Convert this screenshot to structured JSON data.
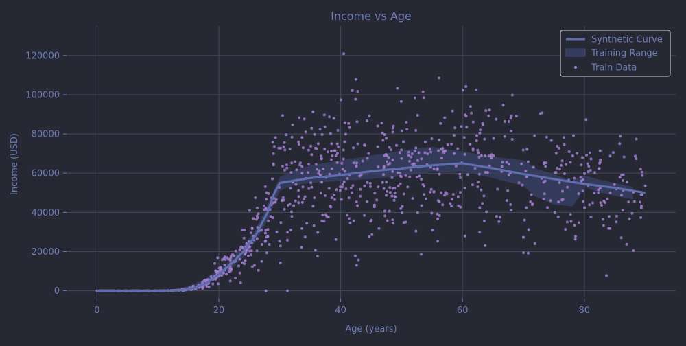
{
  "chart_data": {
    "type": "scatter",
    "title": "Income vs Age",
    "xlabel": "Age (years)",
    "ylabel": "Income (USD)",
    "xlim": [
      -5,
      95
    ],
    "ylim": [
      -4000,
      135000
    ],
    "xticks": [
      0,
      20,
      40,
      60,
      80
    ],
    "yticks": [
      0,
      20000,
      40000,
      60000,
      80000,
      100000,
      120000
    ],
    "grid": true,
    "legend_position": "top-right",
    "colors": {
      "background": "#262834",
      "grid": "#454858",
      "text": "#6e7bb4",
      "curve": "#5f6fae",
      "band": "#3a4066",
      "points": "#a27ed0"
    },
    "series": [
      {
        "name": "Synthetic Curve",
        "kind": "line",
        "x": [
          0,
          5,
          10,
          12,
          14,
          16,
          18,
          20,
          22,
          24,
          26,
          28,
          29,
          30,
          35,
          40,
          45,
          50,
          55,
          60,
          65,
          70,
          75,
          80,
          85,
          90
        ],
        "y": [
          0,
          0,
          0,
          100,
          400,
          1500,
          4000,
          8500,
          13500,
          20000,
          28000,
          40000,
          49000,
          55000,
          57500,
          59000,
          61000,
          62500,
          64000,
          65000,
          62500,
          59500,
          57000,
          54500,
          52500,
          50000
        ]
      },
      {
        "name": "Training Range",
        "kind": "band",
        "x": [
          10,
          12,
          14,
          16,
          18,
          20,
          22,
          24,
          26,
          28,
          30,
          32,
          35,
          40,
          45,
          50,
          55,
          60,
          65,
          70,
          72,
          75,
          78,
          79,
          80,
          82,
          85,
          88
        ],
        "lower": [
          0,
          0,
          200,
          800,
          3000,
          7000,
          11000,
          17000,
          25000,
          36000,
          51000,
          53500,
          55000,
          56000,
          57000,
          58500,
          60500,
          61000,
          57500,
          53500,
          48000,
          44000,
          43000,
          47000,
          53000,
          50500,
          48500,
          46500
        ],
        "upper": [
          0,
          600,
          1500,
          3500,
          6500,
          11000,
          16000,
          23000,
          31000,
          44000,
          58000,
          61000,
          64000,
          66500,
          69000,
          71500,
          73500,
          71000,
          68500,
          66500,
          62500,
          59500,
          56000,
          57500,
          59000,
          57000,
          55000,
          53000
        ]
      },
      {
        "name": "Train Data",
        "kind": "scatter",
        "generator": {
          "count": 900,
          "age_range": [
            0,
            90
          ],
          "noise_fraction": 0.3,
          "seed": 7
        }
      }
    ]
  }
}
